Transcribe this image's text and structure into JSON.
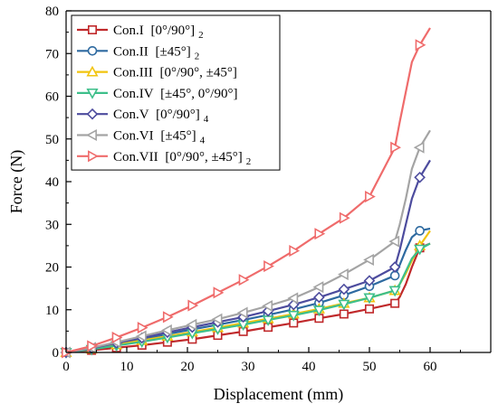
{
  "chart_data": {
    "type": "line",
    "title": "",
    "xlabel": "Displacement (mm)",
    "ylabel": "Force (N)",
    "xlim": [
      0,
      70
    ],
    "ylim": [
      0,
      80
    ],
    "xticks": [
      0,
      10,
      20,
      30,
      40,
      50,
      60
    ],
    "yticks": [
      0,
      10,
      20,
      30,
      40,
      50,
      60,
      70,
      80
    ],
    "grid": false,
    "legend_position": "top-left",
    "series": [
      {
        "name": "Con.I",
        "label_main": "Con.I",
        "label_bracket": "[0°/90°]",
        "label_sub": "2",
        "color": "#c0292b",
        "marker": "square",
        "x": [
          0,
          4.2,
          8.3,
          12.5,
          16.7,
          20.8,
          25,
          29.2,
          33.3,
          37.5,
          41.7,
          45.8,
          50,
          54.2,
          55,
          56,
          57,
          58.3,
          60
        ],
        "y": [
          0,
          0.5,
          1.1,
          1.7,
          2.4,
          3.1,
          4.0,
          4.9,
          5.9,
          6.9,
          8.0,
          9.0,
          10.2,
          11.5,
          13.0,
          16.0,
          20.0,
          24.5,
          25.5
        ]
      },
      {
        "name": "Con.II",
        "label_main": "Con.II",
        "label_bracket": "[±45°]",
        "label_sub": "2",
        "color": "#2e6aa0",
        "marker": "circle",
        "x": [
          0,
          4.2,
          8.3,
          12.5,
          16.7,
          20.8,
          25,
          29.2,
          33.3,
          37.5,
          41.7,
          45.8,
          50,
          54.2,
          55,
          56,
          57,
          58.3,
          60
        ],
        "y": [
          0,
          0.9,
          2.0,
          3.1,
          4.3,
          5.4,
          6.5,
          7.6,
          8.8,
          10.1,
          11.6,
          13.4,
          15.5,
          18.0,
          20.5,
          24.0,
          27.0,
          28.5,
          29.0
        ]
      },
      {
        "name": "Con.III",
        "label_main": "Con.III",
        "label_bracket": "[0°/90°, ±45°]",
        "label_sub": "",
        "color": "#f2c40f",
        "marker": "triangle-up",
        "x": [
          0,
          4.2,
          8.3,
          12.5,
          16.7,
          20.8,
          25,
          29.2,
          33.3,
          37.5,
          41.7,
          45.8,
          50,
          54.2,
          55,
          56,
          57,
          58.3,
          60
        ],
        "y": [
          0,
          0.8,
          1.8,
          2.8,
          3.8,
          4.8,
          5.8,
          6.9,
          7.9,
          9.0,
          10.2,
          11.5,
          12.8,
          14.5,
          16.0,
          18.5,
          21.5,
          25.0,
          28.5
        ]
      },
      {
        "name": "Con.IV",
        "label_main": "Con.IV",
        "label_bracket": "[±45°, 0°/90°]",
        "label_sub": "",
        "color": "#3dbf8a",
        "marker": "triangle-down",
        "x": [
          0,
          4.2,
          8.3,
          12.5,
          16.7,
          20.8,
          25,
          29.2,
          33.3,
          37.5,
          41.7,
          45.8,
          50,
          54.2,
          55,
          56,
          57,
          58.3,
          60
        ],
        "y": [
          0,
          0.7,
          1.6,
          2.5,
          3.5,
          4.5,
          5.5,
          6.5,
          7.6,
          8.7,
          9.9,
          11.3,
          12.8,
          14.5,
          16.0,
          19.0,
          22.0,
          24.2,
          25.5
        ]
      },
      {
        "name": "Con.V",
        "label_main": "Con.V",
        "label_bracket": "[0°/90°]",
        "label_sub": "4",
        "color": "#4d4c9e",
        "marker": "diamond",
        "x": [
          0,
          4.2,
          8.3,
          12.5,
          16.7,
          20.8,
          25,
          29.2,
          33.3,
          37.5,
          41.7,
          45.8,
          50,
          54.2,
          55,
          56,
          57,
          58.3,
          60
        ],
        "y": [
          0,
          1.0,
          2.2,
          3.4,
          4.7,
          5.9,
          7.1,
          8.3,
          9.7,
          11.2,
          12.9,
          14.8,
          16.8,
          20.0,
          24.0,
          30.0,
          36.0,
          41.0,
          45.0
        ]
      },
      {
        "name": "Con.VI",
        "label_main": "Con.VI",
        "label_bracket": "[±45°]",
        "label_sub": "4",
        "color": "#a4a4a4",
        "marker": "triangle-left",
        "x": [
          0,
          4.2,
          8.3,
          12.5,
          16.7,
          20.8,
          25,
          29.2,
          33.3,
          37.5,
          41.7,
          45.8,
          50,
          54.2,
          55,
          56,
          57,
          58.3,
          60
        ],
        "y": [
          0,
          1.1,
          2.4,
          3.8,
          5.2,
          6.5,
          7.8,
          9.3,
          10.9,
          12.7,
          15.3,
          18.3,
          21.7,
          26.0,
          30.0,
          36.0,
          43.0,
          48.0,
          52.0
        ]
      },
      {
        "name": "Con.VII",
        "label_main": "Con.VII",
        "label_bracket": "[0°/90°, ±45°]",
        "label_sub": "2",
        "color": "#ef6b6b",
        "marker": "triangle-right",
        "x": [
          0,
          4.2,
          8.3,
          12.5,
          16.7,
          20.8,
          25,
          29.2,
          33.3,
          37.5,
          41.7,
          45.8,
          50,
          54.2,
          55,
          56,
          57,
          58.3,
          60
        ],
        "y": [
          0,
          1.5,
          3.5,
          5.8,
          8.3,
          11.0,
          14.0,
          17.0,
          20.2,
          23.8,
          27.8,
          31.5,
          36.5,
          48.0,
          54.0,
          61.0,
          68.0,
          72.0,
          76.0
        ]
      }
    ]
  }
}
